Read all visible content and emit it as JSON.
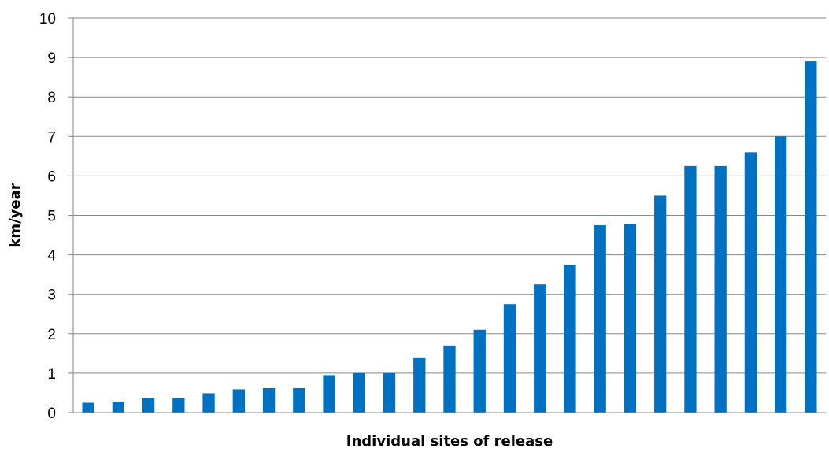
{
  "chart_data": {
    "type": "bar",
    "title": "",
    "xlabel": "Individual sites of release",
    "ylabel": "km/year",
    "ylim": [
      0,
      10
    ],
    "yticks": [
      0,
      1,
      2,
      3,
      4,
      5,
      6,
      7,
      8,
      9,
      10
    ],
    "grid": true,
    "legend": "none",
    "bar_color": "#0070C0",
    "grid_color": "#868686",
    "values": [
      0.25,
      0.28,
      0.36,
      0.37,
      0.49,
      0.59,
      0.62,
      0.62,
      0.95,
      1.0,
      1.0,
      1.4,
      1.7,
      2.1,
      2.75,
      3.25,
      3.75,
      4.75,
      4.78,
      5.5,
      6.25,
      6.25,
      6.6,
      7.0,
      8.9
    ]
  }
}
